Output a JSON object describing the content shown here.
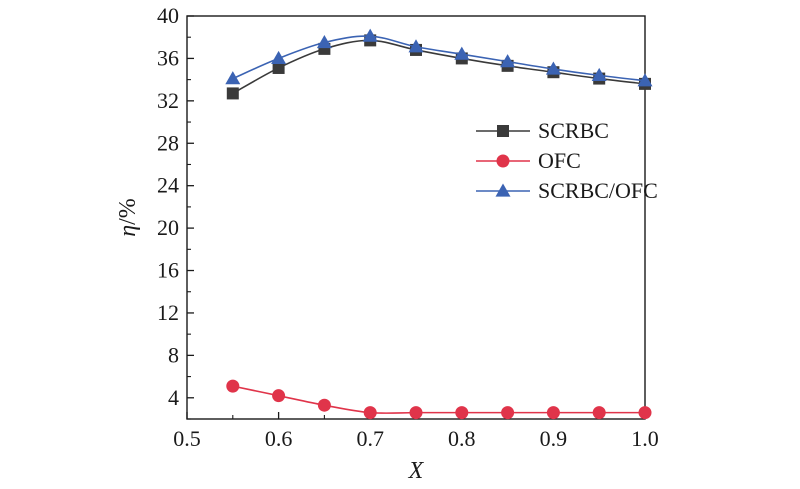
{
  "chart_data": {
    "type": "line",
    "title": "",
    "xlabel": "X",
    "ylabel_symbol": "η",
    "ylabel_unit": "/%",
    "xlim": [
      0.5,
      1.0
    ],
    "ylim": [
      2,
      40
    ],
    "x_ticks": [
      0.5,
      0.6,
      0.7,
      0.8,
      0.9,
      1.0
    ],
    "x_tick_labels": [
      "0.5",
      "0.6",
      "0.7",
      "0.8",
      "0.9",
      "1.0"
    ],
    "y_ticks": [
      4,
      8,
      12,
      16,
      20,
      24,
      28,
      32,
      36,
      40
    ],
    "y_tick_labels": [
      "4",
      "8",
      "12",
      "16",
      "20",
      "24",
      "28",
      "32",
      "36",
      "40"
    ],
    "grid": false,
    "legend_position": "right-middle",
    "x": [
      0.55,
      0.6,
      0.65,
      0.7,
      0.75,
      0.8,
      0.85,
      0.9,
      0.95,
      1.0
    ],
    "series": [
      {
        "name": "SCRBC",
        "marker": "square",
        "color": "#3a3a3a",
        "values": [
          32.7,
          35.1,
          36.9,
          37.7,
          36.8,
          36.0,
          35.3,
          34.7,
          34.1,
          33.6
        ]
      },
      {
        "name": "OFC",
        "marker": "circle",
        "color": "#e0344a",
        "values": [
          5.1,
          4.2,
          3.3,
          2.6,
          2.6,
          2.6,
          2.6,
          2.6,
          2.6,
          2.6
        ]
      },
      {
        "name": "SCRBC/OFC",
        "marker": "triangle",
        "color": "#3b63b3",
        "values": [
          34.1,
          36.0,
          37.5,
          38.1,
          37.1,
          36.4,
          35.7,
          35.0,
          34.4,
          33.9
        ]
      }
    ]
  }
}
